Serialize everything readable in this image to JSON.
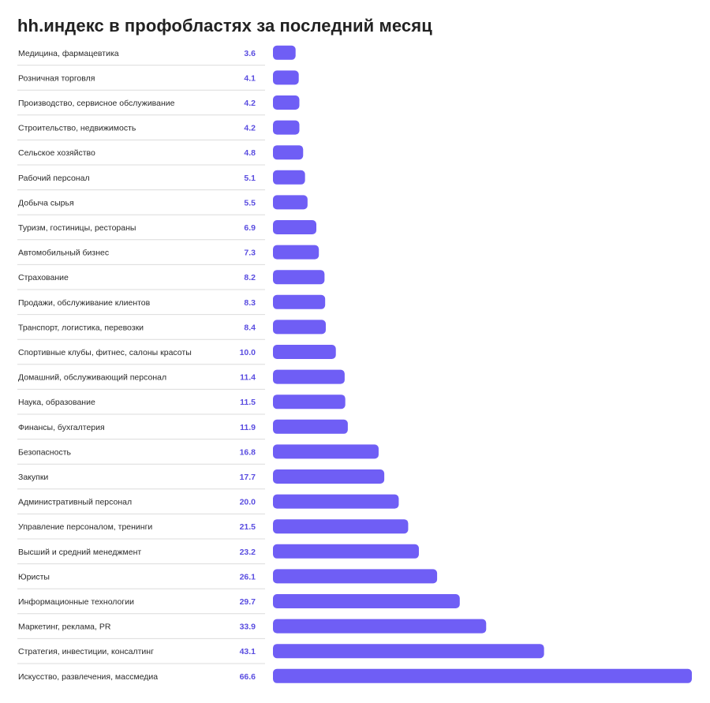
{
  "title": "hh.индекс в профобластях за последний месяц",
  "colors": {
    "bar": "#6f5ef5",
    "value_text": "#5a4de0",
    "divider": "#dcdcdc"
  },
  "chart_data": {
    "type": "bar",
    "orientation": "horizontal",
    "title": "hh.индекс в профобластях за последний месяц",
    "xlabel": "",
    "ylabel": "",
    "xlim": [
      0,
      66.6
    ],
    "grid": false,
    "legend": "none",
    "categories": [
      "Медицина, фармацевтика",
      "Розничная торговля",
      "Производство, сервисное обслуживание",
      "Строительство, недвижимость",
      "Сельское хозяйство",
      "Рабочий персонал",
      "Добыча сырья",
      "Туризм, гостиницы, рестораны",
      "Автомобильный бизнес",
      "Страхование",
      "Продажи, обслуживание клиентов",
      "Транспорт, логистика, перевозки",
      "Спортивные клубы, фитнес, салоны красоты",
      "Домашний, обслуживающий персонал",
      "Наука, образование",
      "Финансы, бухгалтерия",
      "Безопасность",
      "Закупки",
      "Административный персонал",
      "Управление персоналом, тренинги",
      "Высший и средний менеджмент",
      "Юристы",
      "Информационные технологии",
      "Маркетинг, реклама, PR",
      "Стратегия, инвестиции, консалтинг",
      "Искусство, развлечения, массмедиа"
    ],
    "values": [
      3.6,
      4.1,
      4.2,
      4.2,
      4.8,
      5.1,
      5.5,
      6.9,
      7.3,
      8.2,
      8.3,
      8.4,
      10.0,
      11.4,
      11.5,
      11.9,
      16.8,
      17.7,
      20.0,
      21.5,
      23.2,
      26.1,
      29.7,
      33.9,
      43.1,
      66.6
    ],
    "value_labels": [
      "3.6",
      "4.1",
      "4.2",
      "4.2",
      "4.8",
      "5.1",
      "5.5",
      "6.9",
      "7.3",
      "8.2",
      "8.3",
      "8.4",
      "10.0",
      "11.4",
      "11.5",
      "11.9",
      "16.8",
      "17.7",
      "20.0",
      "21.5",
      "23.2",
      "26.1",
      "29.7",
      "33.9",
      "43.1",
      "66.6"
    ]
  }
}
